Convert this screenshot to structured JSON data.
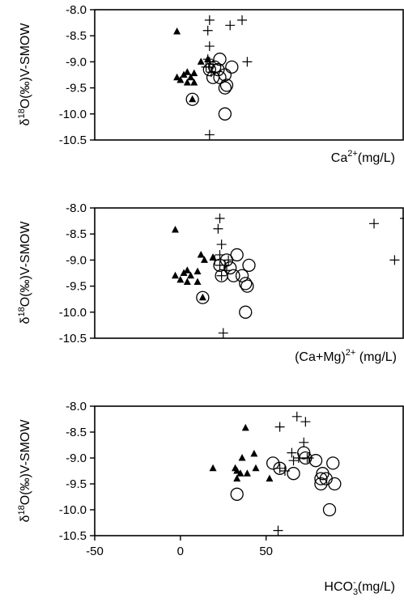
{
  "chart_data": [
    {
      "type": "scatter",
      "xlabel": "Ca²⁺(mg/L)",
      "ylabel": "δ¹⁸O(‰)V-SMOW",
      "ylim": [
        -10.5,
        -8.0
      ],
      "xlim": [
        -50,
        130
      ],
      "y_ticks": [
        "-8.0",
        "-8.5",
        "-9.0",
        "-9.5",
        "-10.0",
        "-10.5"
      ],
      "x_ticks": [],
      "legend": "none",
      "series": [
        {
          "marker": "filled-triangle",
          "points": [
            [
              -2,
              -8.42
            ],
            [
              12,
              -9.0
            ],
            [
              16,
              -8.95
            ],
            [
              4,
              -9.2
            ],
            [
              8,
              -9.22
            ],
            [
              2,
              -9.25
            ],
            [
              6,
              -9.3
            ],
            [
              -2,
              -9.3
            ],
            [
              0,
              -9.35
            ],
            [
              4,
              -9.4
            ],
            [
              8,
              -9.4
            ],
            [
              7,
              -9.72
            ]
          ]
        },
        {
          "marker": "open-circle",
          "points": [
            [
              23,
              -8.95
            ],
            [
              30,
              -9.1
            ],
            [
              20,
              -9.1
            ],
            [
              17,
              -9.15
            ],
            [
              22,
              -9.15
            ],
            [
              26,
              -9.25
            ],
            [
              19,
              -9.3
            ],
            [
              23,
              -9.3
            ],
            [
              27,
              -9.45
            ],
            [
              26,
              -9.5
            ],
            [
              7,
              -9.72
            ],
            [
              26,
              -10.0
            ]
          ]
        },
        {
          "marker": "plus",
          "points": [
            [
              17,
              -8.2
            ],
            [
              36,
              -8.2
            ],
            [
              29,
              -8.3
            ],
            [
              16,
              -8.4
            ],
            [
              17,
              -8.7
            ],
            [
              39,
              -9.0
            ],
            [
              16,
              -8.95
            ],
            [
              17,
              -9.0
            ],
            [
              19,
              -9.05
            ],
            [
              15,
              -9.1
            ],
            [
              17,
              -9.1
            ],
            [
              18,
              -9.2
            ],
            [
              17,
              -10.4
            ]
          ]
        }
      ]
    },
    {
      "type": "scatter",
      "xlabel": "(Ca+Mg)²⁺(mg/L)",
      "ylabel": "δ¹⁸O(‰)V-SMOW",
      "ylim": [
        -10.5,
        -8.0
      ],
      "xlim": [
        -50,
        130
      ],
      "y_ticks": [
        "-8.0",
        "-8.5",
        "-9.0",
        "-9.5",
        "-10.0",
        "-10.5"
      ],
      "x_ticks": [],
      "legend": "none",
      "series": [
        {
          "marker": "filled-triangle",
          "points": [
            [
              -3,
              -8.42
            ],
            [
              12,
              -8.9
            ],
            [
              19,
              -8.95
            ],
            [
              14,
              -9.0
            ],
            [
              4,
              -9.2
            ],
            [
              10,
              -9.22
            ],
            [
              2,
              -9.25
            ],
            [
              6,
              -9.3
            ],
            [
              -3,
              -9.3
            ],
            [
              0,
              -9.38
            ],
            [
              4,
              -9.42
            ],
            [
              10,
              -9.42
            ],
            [
              13,
              -9.72
            ]
          ]
        },
        {
          "marker": "open-circle",
          "points": [
            [
              33,
              -8.9
            ],
            [
              27,
              -9.0
            ],
            [
              23,
              -9.1
            ],
            [
              40,
              -9.1
            ],
            [
              29,
              -9.15
            ],
            [
              31,
              -9.3
            ],
            [
              36,
              -9.3
            ],
            [
              24,
              -9.3
            ],
            [
              38,
              -9.45
            ],
            [
              39,
              -9.5
            ],
            [
              13,
              -9.72
            ],
            [
              38,
              -10.0
            ]
          ]
        },
        {
          "marker": "plus",
          "points": [
            [
              23,
              -8.2
            ],
            [
              131,
              -8.2
            ],
            [
              113,
              -8.3
            ],
            [
              22,
              -8.4
            ],
            [
              24,
              -8.7
            ],
            [
              125,
              -9.0
            ],
            [
              23,
              -8.9
            ],
            [
              28,
              -9.0
            ],
            [
              20,
              -9.0
            ],
            [
              26,
              -9.1
            ],
            [
              23,
              -9.1
            ],
            [
              27,
              -9.2
            ],
            [
              24,
              -9.3
            ],
            [
              25,
              -10.4
            ]
          ]
        }
      ]
    },
    {
      "type": "scatter",
      "xlabel": "HCO₃⁻(mg/L)",
      "ylabel": "δ¹⁸O(‰)V-SMOW",
      "ylim": [
        -10.5,
        -8.0
      ],
      "xlim": [
        -50,
        130
      ],
      "y_ticks": [
        "-8.0",
        "-8.5",
        "-9.0",
        "-9.5",
        "-10.0",
        "-10.5"
      ],
      "x_ticks": [
        "-50",
        "0",
        "50"
      ],
      "legend": "none",
      "series": [
        {
          "marker": "filled-triangle",
          "points": [
            [
              38,
              -8.42
            ],
            [
              36,
              -9.0
            ],
            [
              43,
              -8.92
            ],
            [
              19,
              -9.2
            ],
            [
              32,
              -9.2
            ],
            [
              44,
              -9.2
            ],
            [
              33,
              -9.25
            ],
            [
              35,
              -9.3
            ],
            [
              39,
              -9.3
            ],
            [
              52,
              -9.4
            ],
            [
              33,
              -9.4
            ]
          ]
        },
        {
          "marker": "open-circle",
          "points": [
            [
              72,
              -8.9
            ],
            [
              73,
              -9.0
            ],
            [
              79,
              -9.05
            ],
            [
              54,
              -9.1
            ],
            [
              89,
              -9.1
            ],
            [
              58,
              -9.2
            ],
            [
              83,
              -9.3
            ],
            [
              66,
              -9.3
            ],
            [
              82,
              -9.4
            ],
            [
              85,
              -9.4
            ],
            [
              82,
              -9.5
            ],
            [
              90,
              -9.5
            ],
            [
              33,
              -9.7
            ],
            [
              87,
              -10.0
            ]
          ]
        },
        {
          "marker": "plus",
          "points": [
            [
              68,
              -8.2
            ],
            [
              73,
              -8.3
            ],
            [
              58,
              -8.4
            ],
            [
              72,
              -8.7
            ],
            [
              65,
              -8.9
            ],
            [
              69,
              -9.0
            ],
            [
              74,
              -9.0
            ],
            [
              66,
              -9.05
            ],
            [
              75,
              -9.0
            ],
            [
              58,
              -9.2
            ],
            [
              61,
              -9.25
            ],
            [
              57,
              -10.4
            ]
          ]
        }
      ]
    }
  ]
}
